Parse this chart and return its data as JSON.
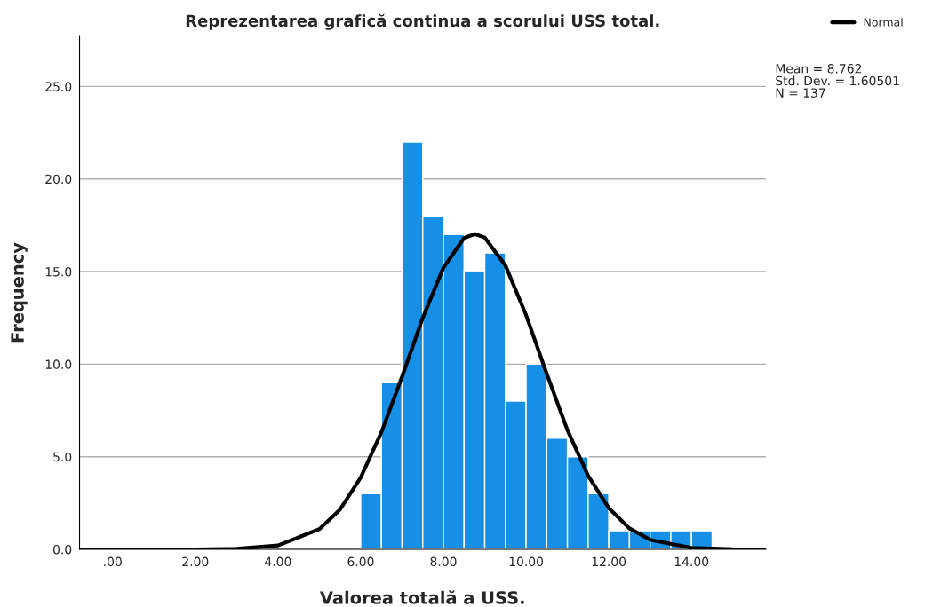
{
  "chart_data": {
    "type": "histogram",
    "title": "Reprezentarea grafică continua a scorului USS total.",
    "xlabel": "Valorea totală a USS.",
    "ylabel": "Frequency",
    "bins": [
      6.0,
      6.5,
      7.0,
      7.5,
      8.0,
      8.5,
      9.0,
      9.5,
      10.0,
      10.5,
      11.0,
      11.5,
      12.0,
      12.5,
      13.0,
      13.5,
      14.0,
      14.5
    ],
    "values": [
      3,
      9,
      22,
      18,
      17,
      15,
      16,
      8,
      10,
      6,
      5,
      3,
      1,
      1,
      1,
      1,
      1
    ],
    "color": "#1590e6",
    "series": [
      {
        "name": "Normal",
        "type": "line",
        "color": "#000000",
        "x": [
          -0.8,
          0,
          2,
          3,
          4,
          5,
          5.5,
          6,
          6.5,
          7,
          7.5,
          8,
          8.5,
          8.762,
          9,
          9.5,
          10,
          10.5,
          11,
          11.5,
          12,
          12.5,
          13,
          14,
          15,
          15.8
        ],
        "values": [
          0,
          0,
          0.0,
          0.03,
          0.21,
          1.09,
          2.15,
          3.88,
          6.32,
          9.32,
          12.5,
          15.21,
          16.81,
          17.03,
          16.84,
          15.33,
          12.65,
          9.48,
          6.44,
          3.97,
          2.23,
          1.13,
          0.52,
          0.08,
          0.01,
          0
        ]
      }
    ],
    "xlim": [
      -0.8,
      15.8
    ],
    "ylim": [
      0,
      27.7
    ],
    "xticks": [
      {
        "value": 0,
        "label": ".00"
      },
      {
        "value": 2,
        "label": "2.00"
      },
      {
        "value": 4,
        "label": "4.00"
      },
      {
        "value": 6,
        "label": "6.00"
      },
      {
        "value": 8,
        "label": "8.00"
      },
      {
        "value": 10,
        "label": "10.00"
      },
      {
        "value": 12,
        "label": "12.00"
      },
      {
        "value": 14,
        "label": "14.00"
      }
    ],
    "yticks": [
      {
        "value": 0,
        "label": "0.0"
      },
      {
        "value": 5,
        "label": "5.0"
      },
      {
        "value": 10,
        "label": "10.0"
      },
      {
        "value": 15,
        "label": "15.0"
      },
      {
        "value": 20,
        "label": "20.0"
      },
      {
        "value": 25,
        "label": "25.0"
      }
    ],
    "grid": "y",
    "legend": "top right",
    "annotations": [
      "Mean = 8.762",
      "Std. Dev. = 1.60501",
      "N = 137"
    ]
  }
}
